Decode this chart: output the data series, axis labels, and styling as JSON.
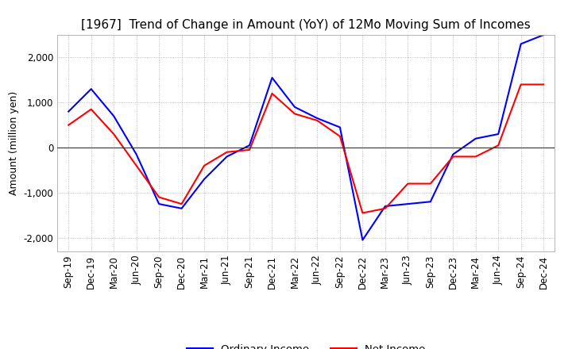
{
  "title": "[1967]  Trend of Change in Amount (YoY) of 12Mo Moving Sum of Incomes",
  "ylabel": "Amount (million yen)",
  "title_fontsize": 11,
  "label_fontsize": 9,
  "tick_fontsize": 8.5,
  "background_color": "#ffffff",
  "grid_color": "#aaaaaa",
  "ordinary_income_color": "#0000ff",
  "net_income_color": "#ff0000",
  "x_labels": [
    "Sep-19",
    "Dec-19",
    "Mar-20",
    "Jun-20",
    "Sep-20",
    "Dec-20",
    "Mar-21",
    "Jun-21",
    "Sep-21",
    "Dec-21",
    "Mar-22",
    "Jun-22",
    "Sep-22",
    "Dec-22",
    "Mar-23",
    "Jun-23",
    "Sep-23",
    "Dec-23",
    "Mar-24",
    "Jun-24",
    "Sep-24",
    "Dec-24"
  ],
  "ordinary_income": [
    800,
    1300,
    700,
    -150,
    -1250,
    -1350,
    -700,
    -200,
    50,
    1550,
    900,
    650,
    450,
    -2050,
    -1300,
    -1250,
    -1200,
    -150,
    200,
    300,
    2300,
    2500
  ],
  "net_income": [
    500,
    850,
    300,
    -400,
    -1100,
    -1250,
    -400,
    -100,
    -50,
    1200,
    750,
    600,
    250,
    -1450,
    -1350,
    -800,
    -800,
    -200,
    -200,
    50,
    1400,
    1400
  ],
  "ylim": [
    -2300,
    2500
  ],
  "yticks": [
    -2000,
    -1000,
    0,
    1000,
    2000
  ]
}
